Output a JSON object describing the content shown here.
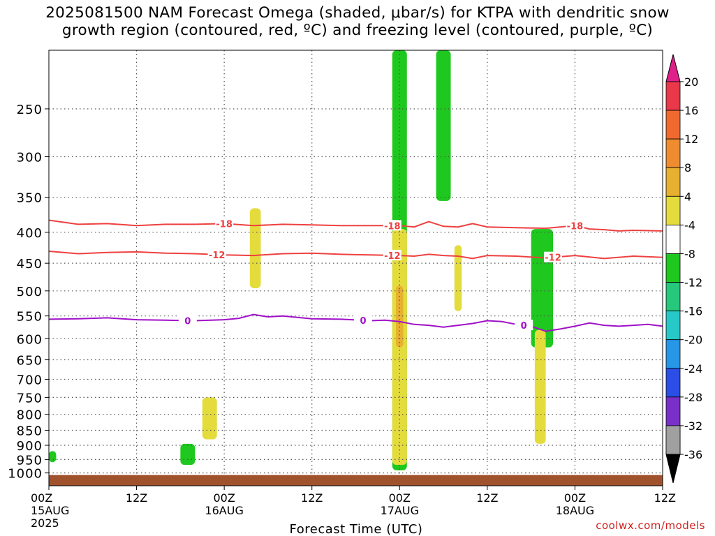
{
  "title": {
    "line1": "2025081500 NAM Forecast Omega (shaded, μbar/s) for KTPA with dendritic snow",
    "line2": "growth region (contoured, red, ºC) and freezing level (contoured, purple, ºC)"
  },
  "credit": "coolwx.com/models",
  "chart_data": {
    "type": "heatmap",
    "xlabel": "Forecast Time (UTC)",
    "ylabel": "",
    "y_scale": "log",
    "ylim": [
      1050,
      200
    ],
    "xlim": [
      0,
      84
    ],
    "grid": true,
    "y_ticks": [
      250,
      300,
      350,
      400,
      450,
      500,
      550,
      600,
      650,
      700,
      750,
      800,
      850,
      900,
      950,
      1000
    ],
    "x_ticks": [
      {
        "hour": 0,
        "l1": "00Z",
        "l2": "15AUG",
        "l3": "2025"
      },
      {
        "hour": 12,
        "l1": "12Z",
        "l2": "",
        "l3": ""
      },
      {
        "hour": 24,
        "l1": "00Z",
        "l2": "16AUG",
        "l3": ""
      },
      {
        "hour": 36,
        "l1": "12Z",
        "l2": "",
        "l3": ""
      },
      {
        "hour": 48,
        "l1": "00Z",
        "l2": "17AUG",
        "l3": ""
      },
      {
        "hour": 60,
        "l1": "12Z",
        "l2": "",
        "l3": ""
      },
      {
        "hour": 72,
        "l1": "00Z",
        "l2": "18AUG",
        "l3": ""
      },
      {
        "hour": 84,
        "l1": "12Z",
        "l2": "",
        "l3": ""
      }
    ],
    "colorbar": {
      "levels": [
        20,
        16,
        12,
        8,
        4,
        -4,
        -8,
        -12,
        -16,
        -20,
        -24,
        -28,
        -32,
        -36
      ],
      "top_color": "#e0208a",
      "bottom_color": "#000000",
      "colors": [
        "#e8384a",
        "#f06a2e",
        "#f08c30",
        "#e8b030",
        "#e4dc3c",
        "#ffffff",
        "#1ec81e",
        "#26c87c",
        "#26c8c8",
        "#2696e6",
        "#2a4ee6",
        "#7830c8",
        "#a020c0",
        "#a0a0a0"
      ]
    },
    "ground_color": "#a0522d",
    "series": [
      {
        "name": "-18",
        "color": "#ee4040",
        "label_at": [
          24,
          47,
          72
        ],
        "x": [
          0,
          4,
          8,
          12,
          16,
          20,
          24,
          28,
          32,
          36,
          40,
          44,
          48,
          50,
          52,
          54,
          56,
          58,
          60,
          64,
          68,
          72,
          74,
          76,
          78,
          80,
          84
        ],
        "y": [
          382,
          388,
          387,
          390,
          388,
          388,
          387,
          390,
          388,
          389,
          390,
          390,
          390,
          392,
          384,
          391,
          392,
          387,
          392,
          393,
          394,
          390,
          395,
          396,
          398,
          397,
          398
        ]
      },
      {
        "name": "-12",
        "color": "#ee4040",
        "label_at": [
          23,
          47,
          69
        ],
        "x": [
          0,
          4,
          8,
          12,
          16,
          20,
          24,
          28,
          32,
          36,
          40,
          44,
          48,
          50,
          52,
          54,
          56,
          58,
          60,
          64,
          68,
          72,
          76,
          80,
          84
        ],
        "y": [
          430,
          434,
          432,
          431,
          433,
          434,
          436,
          437,
          434,
          433,
          435,
          436,
          437,
          438,
          435,
          437,
          438,
          442,
          437,
          438,
          441,
          437,
          442,
          438,
          440
        ]
      },
      {
        "name": "0",
        "color": "#a010c8",
        "label_at": [
          19,
          43,
          65
        ],
        "x": [
          0,
          4,
          8,
          12,
          16,
          20,
          24,
          26,
          28,
          30,
          32,
          36,
          40,
          44,
          46,
          48,
          50,
          52,
          54,
          56,
          58,
          60,
          62,
          64,
          66,
          68,
          70,
          72,
          74,
          76,
          78,
          80,
          82,
          84
        ],
        "y": [
          557,
          556,
          554,
          558,
          559,
          560,
          558,
          555,
          547,
          552,
          550,
          556,
          557,
          560,
          559,
          562,
          568,
          570,
          574,
          570,
          566,
          560,
          562,
          568,
          572,
          583,
          578,
          572,
          565,
          570,
          572,
          570,
          568,
          572
        ]
      }
    ],
    "shaded_regions": [
      {
        "value": "-4 to -8",
        "approx_hours": [
          47,
          49
        ],
        "approx_pressure": [
          200,
          990
        ]
      },
      {
        "value": "-4 to -8",
        "approx_hours": [
          53,
          55
        ],
        "approx_pressure": [
          200,
          355
        ]
      },
      {
        "value": "-4 to -8",
        "approx_hours": [
          66,
          69
        ],
        "approx_pressure": [
          395,
          620
        ]
      },
      {
        "value": "-4 to -8",
        "approx_hours": [
          18,
          20
        ],
        "approx_pressure": [
          895,
          970
        ]
      },
      {
        "value": "-4 to -8",
        "approx_hours": [
          0,
          1
        ],
        "approx_pressure": [
          920,
          960
        ]
      },
      {
        "value": "4 to 8",
        "approx_hours": [
          47,
          49
        ],
        "approx_pressure": [
          395,
          970
        ]
      },
      {
        "value": "8 to 12",
        "approx_hours": [
          47.5,
          48.5
        ],
        "approx_pressure": [
          490,
          620
        ]
      },
      {
        "value": "4 to 8",
        "approx_hours": [
          21,
          23
        ],
        "approx_pressure": [
          750,
          880
        ]
      },
      {
        "value": "4 to 8",
        "approx_hours": [
          66.5,
          68
        ],
        "approx_pressure": [
          580,
          895
        ]
      },
      {
        "value": "4 to 8",
        "approx_hours": [
          55.5,
          56.5
        ],
        "approx_pressure": [
          420,
          540
        ]
      },
      {
        "value": "4 to 8",
        "approx_hours": [
          27.5,
          29
        ],
        "approx_pressure": [
          365,
          495
        ]
      }
    ]
  }
}
